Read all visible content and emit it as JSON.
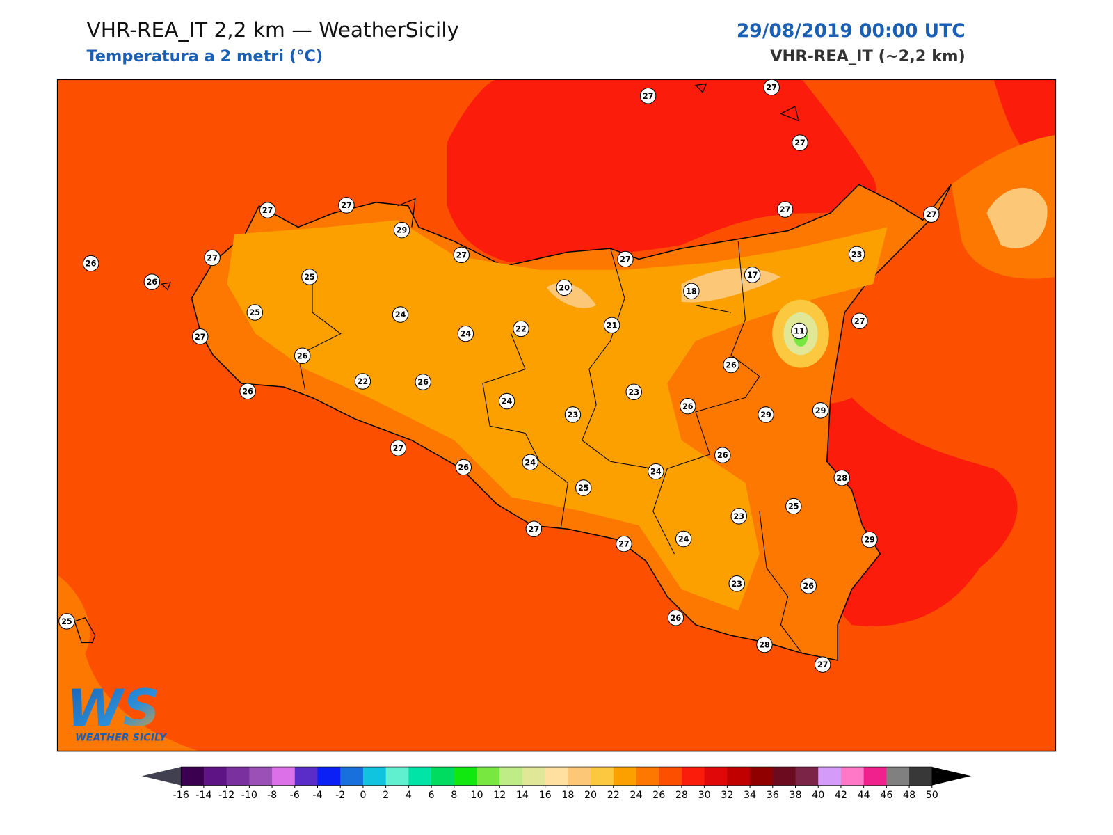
{
  "header": {
    "title": "VHR-REA_IT 2,2 km — WeatherSicily",
    "subtitle": "Temperatura a 2 metri (°C)",
    "datetime": "29/08/2019 00:00 UTC",
    "model": "VHR-REA_IT (~2,2 km)"
  },
  "stations": [
    {
      "value": 27
    },
    {
      "value": 27
    },
    {
      "value": 27
    },
    {
      "value": 27
    },
    {
      "value": 27
    },
    {
      "value": 29
    },
    {
      "value": 27
    },
    {
      "value": 27
    },
    {
      "value": 26
    },
    {
      "value": 26
    },
    {
      "value": 27
    },
    {
      "value": 25
    },
    {
      "value": 27
    },
    {
      "value": 27
    },
    {
      "value": 23
    },
    {
      "value": 17
    },
    {
      "value": 18
    },
    {
      "value": 20
    },
    {
      "value": 25
    },
    {
      "value": 24
    },
    {
      "value": 24
    },
    {
      "value": 22
    },
    {
      "value": 21
    },
    {
      "value": 11
    },
    {
      "value": 27
    },
    {
      "value": 27
    },
    {
      "value": 26
    },
    {
      "value": 26
    },
    {
      "value": 22
    },
    {
      "value": 26
    },
    {
      "value": 26
    },
    {
      "value": 23
    },
    {
      "value": 24
    },
    {
      "value": 23
    },
    {
      "value": 26
    },
    {
      "value": 29
    },
    {
      "value": 29
    },
    {
      "value": 27
    },
    {
      "value": 26
    },
    {
      "value": 24
    },
    {
      "value": 26
    },
    {
      "value": 24
    },
    {
      "value": 25
    },
    {
      "value": 28
    },
    {
      "value": 25
    },
    {
      "value": 23
    },
    {
      "value": 27
    },
    {
      "value": 27
    },
    {
      "value": 24
    },
    {
      "value": 29
    },
    {
      "value": 23
    },
    {
      "value": 26
    },
    {
      "value": 25
    },
    {
      "value": 26
    },
    {
      "value": 28
    },
    {
      "value": 27
    }
  ],
  "colorbar": {
    "ticks": [
      -16,
      -14,
      -12,
      -10,
      -8,
      -6,
      -4,
      -2,
      0,
      2,
      4,
      6,
      8,
      10,
      12,
      14,
      16,
      18,
      20,
      22,
      24,
      26,
      28,
      30,
      32,
      34,
      36,
      38,
      40,
      42,
      44,
      46,
      48,
      50
    ],
    "colors": [
      "#3c0050",
      "#5e1484",
      "#7a309e",
      "#9a50b6",
      "#dc70e8",
      "#5a2cc8",
      "#0a20f4",
      "#1870dc",
      "#10c4e0",
      "#60f0d0",
      "#00e4a8",
      "#00dc60",
      "#10e810",
      "#78e840",
      "#c0ec88",
      "#e0e898",
      "#ffe0a0",
      "#fcc878",
      "#fcc840",
      "#fca000",
      "#fc7800",
      "#fc5000",
      "#fc1c0c",
      "#e00808",
      "#c00000",
      "#900000",
      "#6c0a20",
      "#7c2448",
      "#d49cf8",
      "#ff78c8",
      "#f0208c",
      "#808080",
      "#383838"
    ],
    "under": "#404050",
    "over": "#000000"
  },
  "logo": {
    "mark": "WS",
    "text": "WEATHER SICILY"
  }
}
